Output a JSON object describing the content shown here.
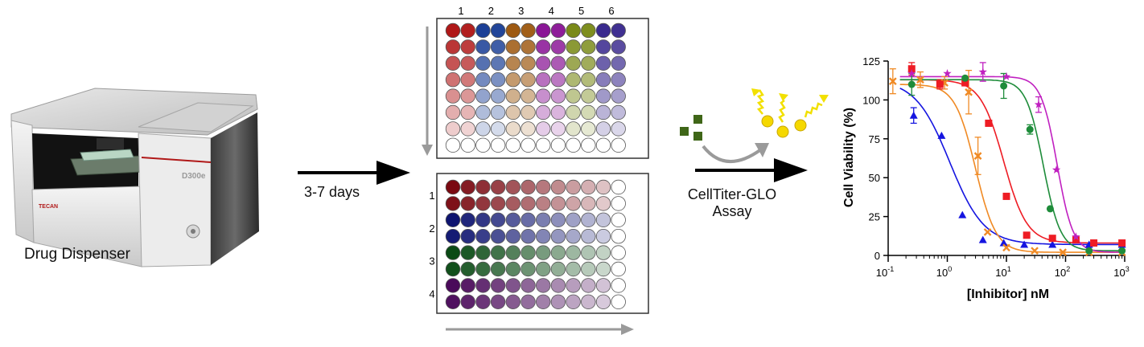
{
  "dispenser": {
    "label": "Drug Dispenser",
    "brand": "TECAN",
    "model": "D300e"
  },
  "incubation": {
    "label": "3-7 days"
  },
  "plate_top": {
    "column_labels": [
      "1",
      "2",
      "3",
      "4",
      "5",
      "6"
    ],
    "base_colors": [
      "#b01818",
      "#1b3f96",
      "#9e5a12",
      "#8a1696",
      "#7a8a18",
      "#3a2a8e"
    ]
  },
  "plate_bottom": {
    "row_labels": [
      "1",
      "2",
      "3",
      "4"
    ],
    "base_colors": [
      "#7a0a12",
      "#0e1470",
      "#0a4a14",
      "#4a0a5a"
    ]
  },
  "assay": {
    "line1": "CellTiter-GLO",
    "line2": "Assay"
  },
  "colors": {
    "arrow": "#000000",
    "gray_arrow": "#9a9a9a",
    "substrate": "#3f6618",
    "light_ray": "#f2e000",
    "light_dot": "#f5d800"
  },
  "chart_data": {
    "type": "scatter",
    "xlabel": "[Inhibitor] nM",
    "ylabel": "Cell Viability (%)",
    "xscale": "log",
    "xlim": [
      0.1,
      1000
    ],
    "ylim": [
      0,
      125
    ],
    "xticks": [
      0.1,
      1,
      10,
      100,
      1000
    ],
    "xtick_labels": [
      "10-1",
      "100",
      "101",
      "102",
      "103"
    ],
    "yticks": [
      0,
      25,
      50,
      75,
      100,
      125
    ],
    "ytick_labels": [
      "0",
      "25",
      "50",
      "75",
      "100",
      "125"
    ],
    "series": [
      {
        "color": "#1515e0",
        "marker": "triangle",
        "x": [
          0.27,
          0.8,
          1.8,
          4,
          9,
          20,
          60,
          250,
          900
        ],
        "y": [
          90,
          77,
          26,
          10,
          8,
          7,
          7,
          7,
          7
        ],
        "err": [
          5,
          0,
          0,
          0,
          0,
          0,
          0,
          0,
          0
        ],
        "fit": {
          "top": 113,
          "bottom": 7,
          "ic50": 1.1,
          "hill": 1.5
        }
      },
      {
        "color": "#f08a24",
        "marker": "x",
        "x": [
          0.12,
          0.35,
          0.9,
          2.3,
          3.3,
          4.8,
          10,
          30,
          90,
          250,
          900
        ],
        "y": [
          112,
          113,
          111,
          105,
          64,
          15,
          5,
          3,
          2,
          2,
          2
        ],
        "err": [
          8,
          5,
          4,
          14,
          12,
          0,
          0,
          0,
          0,
          0,
          0
        ],
        "fit": {
          "top": 110,
          "bottom": 2,
          "ic50": 3.0,
          "hill": 2.5
        }
      },
      {
        "color": "#ee1c24",
        "marker": "square",
        "x": [
          0.25,
          0.75,
          2,
          5,
          10,
          22,
          60,
          150,
          300,
          900
        ],
        "y": [
          120,
          110,
          111,
          85,
          38,
          13,
          11,
          10,
          8,
          8
        ],
        "err": [
          4,
          3,
          0,
          0,
          0,
          0,
          0,
          0,
          0,
          0
        ],
        "fit": {
          "top": 113,
          "bottom": 8,
          "ic50": 9,
          "hill": 2.2
        }
      },
      {
        "color": "#1e8c3a",
        "marker": "circle",
        "x": [
          0.25,
          2,
          9,
          25,
          55,
          250,
          900
        ],
        "y": [
          110,
          114,
          109,
          81,
          30,
          3,
          3
        ],
        "err": [
          7,
          0,
          8,
          3,
          0,
          0,
          0
        ],
        "fit": {
          "top": 113,
          "bottom": 3,
          "ic50": 42,
          "hill": 3.0
        }
      },
      {
        "color": "#c020c0",
        "marker": "star",
        "x": [
          0.25,
          1,
          4,
          10,
          35,
          70,
          150
        ],
        "y": [
          117,
          117,
          118,
          115,
          97,
          55,
          12
        ],
        "err": [
          0,
          0,
          6,
          0,
          5,
          0,
          0
        ],
        "fit": {
          "top": 115,
          "bottom": 2,
          "ic50": 72,
          "hill": 3.2
        }
      }
    ]
  }
}
